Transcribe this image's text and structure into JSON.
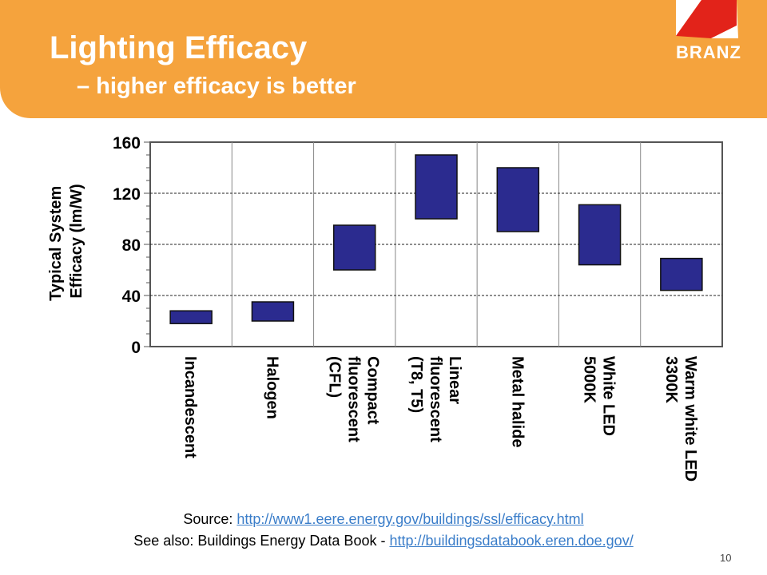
{
  "slide": {
    "title": "Lighting Efficacy",
    "subtitle": "– higher efficacy is better",
    "logo_text": "BRANZ",
    "page_number": "10"
  },
  "footer": {
    "source_prefix": "Source: ",
    "source_link": "http://www1.eere.energy.gov/buildings/ssl/efficacy.html",
    "see_also_prefix": "See also: Buildings Energy Data Book - ",
    "see_also_link": "http://buildingsdatabook.eren.doe.gov/"
  },
  "colors": {
    "header": "#F5A33D",
    "bar_fill": "#2B2B8F",
    "logo_red": "#E2231A",
    "link": "#3a7dc9"
  },
  "chart_data": {
    "type": "bar",
    "subtype": "floating range",
    "ylabel_lines": [
      "Typical System",
      "Efficacy (lm/W)"
    ],
    "ylim": [
      0,
      160
    ],
    "yticks": [
      0,
      40,
      80,
      120,
      160
    ],
    "grid": "dashed horizontal at major ticks",
    "categories": [
      {
        "label": [
          "Incandescent"
        ],
        "low": 18,
        "high": 28
      },
      {
        "label": [
          "Halogen"
        ],
        "low": 20,
        "high": 35
      },
      {
        "label": [
          "Compact",
          "fluorescent",
          "(CFL)"
        ],
        "low": 60,
        "high": 95
      },
      {
        "label": [
          "Linear",
          "fluorescent",
          "(T8, T5)"
        ],
        "low": 100,
        "high": 150
      },
      {
        "label": [
          "Metal halide"
        ],
        "low": 90,
        "high": 140
      },
      {
        "label": [
          "White LED",
          "5000K"
        ],
        "low": 64,
        "high": 111
      },
      {
        "label": [
          "Warm white LED",
          "3300K"
        ],
        "low": 44,
        "high": 69
      }
    ]
  }
}
